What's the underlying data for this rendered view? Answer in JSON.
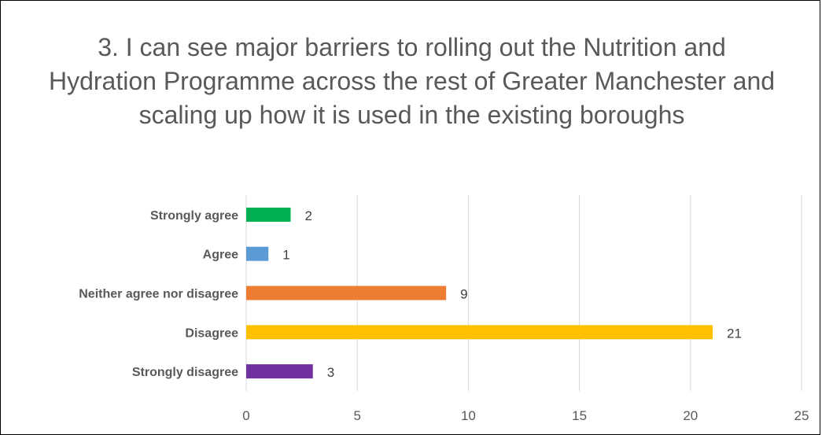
{
  "chart_data": {
    "type": "bar",
    "orientation": "horizontal",
    "title": "3. I can see major barriers to rolling out the Nutrition and Hydration Programme across the rest of Greater Manchester and scaling up how it is used in the existing boroughs",
    "categories": [
      "Strongly agree",
      "Agree",
      "Neither agree nor disagree",
      "Disagree",
      "Strongly disagree"
    ],
    "values": [
      2,
      1,
      9,
      21,
      3
    ],
    "colors": [
      "#00B050",
      "#5B9BD5",
      "#ED7D31",
      "#FFC000",
      "#7030A0"
    ],
    "xlim": [
      0,
      25
    ],
    "xticks": [
      0,
      5,
      10,
      15,
      20,
      25
    ],
    "grid": true,
    "legend": "none",
    "data_labels": true
  }
}
